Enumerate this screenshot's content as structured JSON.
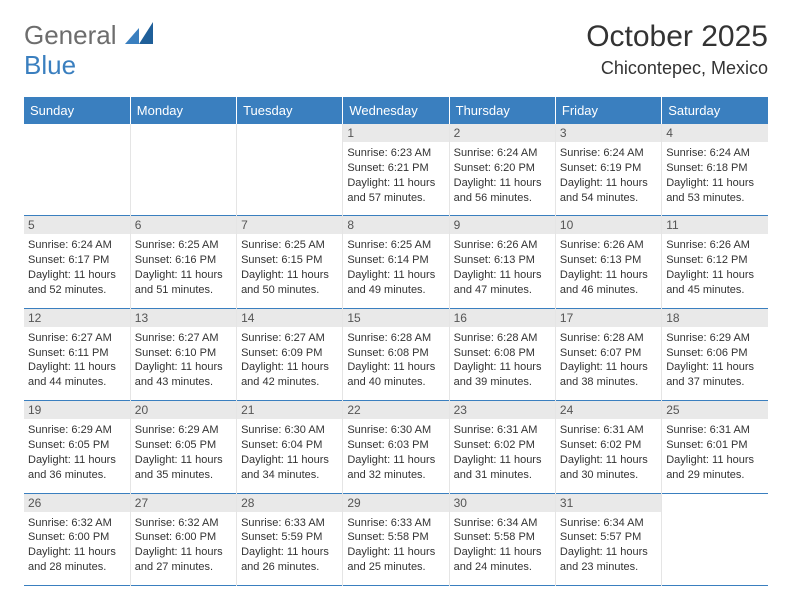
{
  "brand": {
    "part1": "General",
    "part2": "Blue"
  },
  "title": "October 2025",
  "location": "Chicontepec, Mexico",
  "colors": {
    "header_bg": "#3a7fbf",
    "header_text": "#ffffff",
    "row_divider": "#3a7fbf",
    "daynum_bg": "#e9e9e9",
    "body_text": "#333333"
  },
  "dayHeaders": [
    "Sunday",
    "Monday",
    "Tuesday",
    "Wednesday",
    "Thursday",
    "Friday",
    "Saturday"
  ],
  "weeks": [
    [
      null,
      null,
      null,
      {
        "n": "1",
        "sr": "6:23 AM",
        "ss": "6:21 PM",
        "dl": "11 hours and 57 minutes."
      },
      {
        "n": "2",
        "sr": "6:24 AM",
        "ss": "6:20 PM",
        "dl": "11 hours and 56 minutes."
      },
      {
        "n": "3",
        "sr": "6:24 AM",
        "ss": "6:19 PM",
        "dl": "11 hours and 54 minutes."
      },
      {
        "n": "4",
        "sr": "6:24 AM",
        "ss": "6:18 PM",
        "dl": "11 hours and 53 minutes."
      }
    ],
    [
      {
        "n": "5",
        "sr": "6:24 AM",
        "ss": "6:17 PM",
        "dl": "11 hours and 52 minutes."
      },
      {
        "n": "6",
        "sr": "6:25 AM",
        "ss": "6:16 PM",
        "dl": "11 hours and 51 minutes."
      },
      {
        "n": "7",
        "sr": "6:25 AM",
        "ss": "6:15 PM",
        "dl": "11 hours and 50 minutes."
      },
      {
        "n": "8",
        "sr": "6:25 AM",
        "ss": "6:14 PM",
        "dl": "11 hours and 49 minutes."
      },
      {
        "n": "9",
        "sr": "6:26 AM",
        "ss": "6:13 PM",
        "dl": "11 hours and 47 minutes."
      },
      {
        "n": "10",
        "sr": "6:26 AM",
        "ss": "6:13 PM",
        "dl": "11 hours and 46 minutes."
      },
      {
        "n": "11",
        "sr": "6:26 AM",
        "ss": "6:12 PM",
        "dl": "11 hours and 45 minutes."
      }
    ],
    [
      {
        "n": "12",
        "sr": "6:27 AM",
        "ss": "6:11 PM",
        "dl": "11 hours and 44 minutes."
      },
      {
        "n": "13",
        "sr": "6:27 AM",
        "ss": "6:10 PM",
        "dl": "11 hours and 43 minutes."
      },
      {
        "n": "14",
        "sr": "6:27 AM",
        "ss": "6:09 PM",
        "dl": "11 hours and 42 minutes."
      },
      {
        "n": "15",
        "sr": "6:28 AM",
        "ss": "6:08 PM",
        "dl": "11 hours and 40 minutes."
      },
      {
        "n": "16",
        "sr": "6:28 AM",
        "ss": "6:08 PM",
        "dl": "11 hours and 39 minutes."
      },
      {
        "n": "17",
        "sr": "6:28 AM",
        "ss": "6:07 PM",
        "dl": "11 hours and 38 minutes."
      },
      {
        "n": "18",
        "sr": "6:29 AM",
        "ss": "6:06 PM",
        "dl": "11 hours and 37 minutes."
      }
    ],
    [
      {
        "n": "19",
        "sr": "6:29 AM",
        "ss": "6:05 PM",
        "dl": "11 hours and 36 minutes."
      },
      {
        "n": "20",
        "sr": "6:29 AM",
        "ss": "6:05 PM",
        "dl": "11 hours and 35 minutes."
      },
      {
        "n": "21",
        "sr": "6:30 AM",
        "ss": "6:04 PM",
        "dl": "11 hours and 34 minutes."
      },
      {
        "n": "22",
        "sr": "6:30 AM",
        "ss": "6:03 PM",
        "dl": "11 hours and 32 minutes."
      },
      {
        "n": "23",
        "sr": "6:31 AM",
        "ss": "6:02 PM",
        "dl": "11 hours and 31 minutes."
      },
      {
        "n": "24",
        "sr": "6:31 AM",
        "ss": "6:02 PM",
        "dl": "11 hours and 30 minutes."
      },
      {
        "n": "25",
        "sr": "6:31 AM",
        "ss": "6:01 PM",
        "dl": "11 hours and 29 minutes."
      }
    ],
    [
      {
        "n": "26",
        "sr": "6:32 AM",
        "ss": "6:00 PM",
        "dl": "11 hours and 28 minutes."
      },
      {
        "n": "27",
        "sr": "6:32 AM",
        "ss": "6:00 PM",
        "dl": "11 hours and 27 minutes."
      },
      {
        "n": "28",
        "sr": "6:33 AM",
        "ss": "5:59 PM",
        "dl": "11 hours and 26 minutes."
      },
      {
        "n": "29",
        "sr": "6:33 AM",
        "ss": "5:58 PM",
        "dl": "11 hours and 25 minutes."
      },
      {
        "n": "30",
        "sr": "6:34 AM",
        "ss": "5:58 PM",
        "dl": "11 hours and 24 minutes."
      },
      {
        "n": "31",
        "sr": "6:34 AM",
        "ss": "5:57 PM",
        "dl": "11 hours and 23 minutes."
      },
      null
    ]
  ],
  "labels": {
    "sunrise": "Sunrise:",
    "sunset": "Sunset:",
    "daylight": "Daylight:"
  }
}
